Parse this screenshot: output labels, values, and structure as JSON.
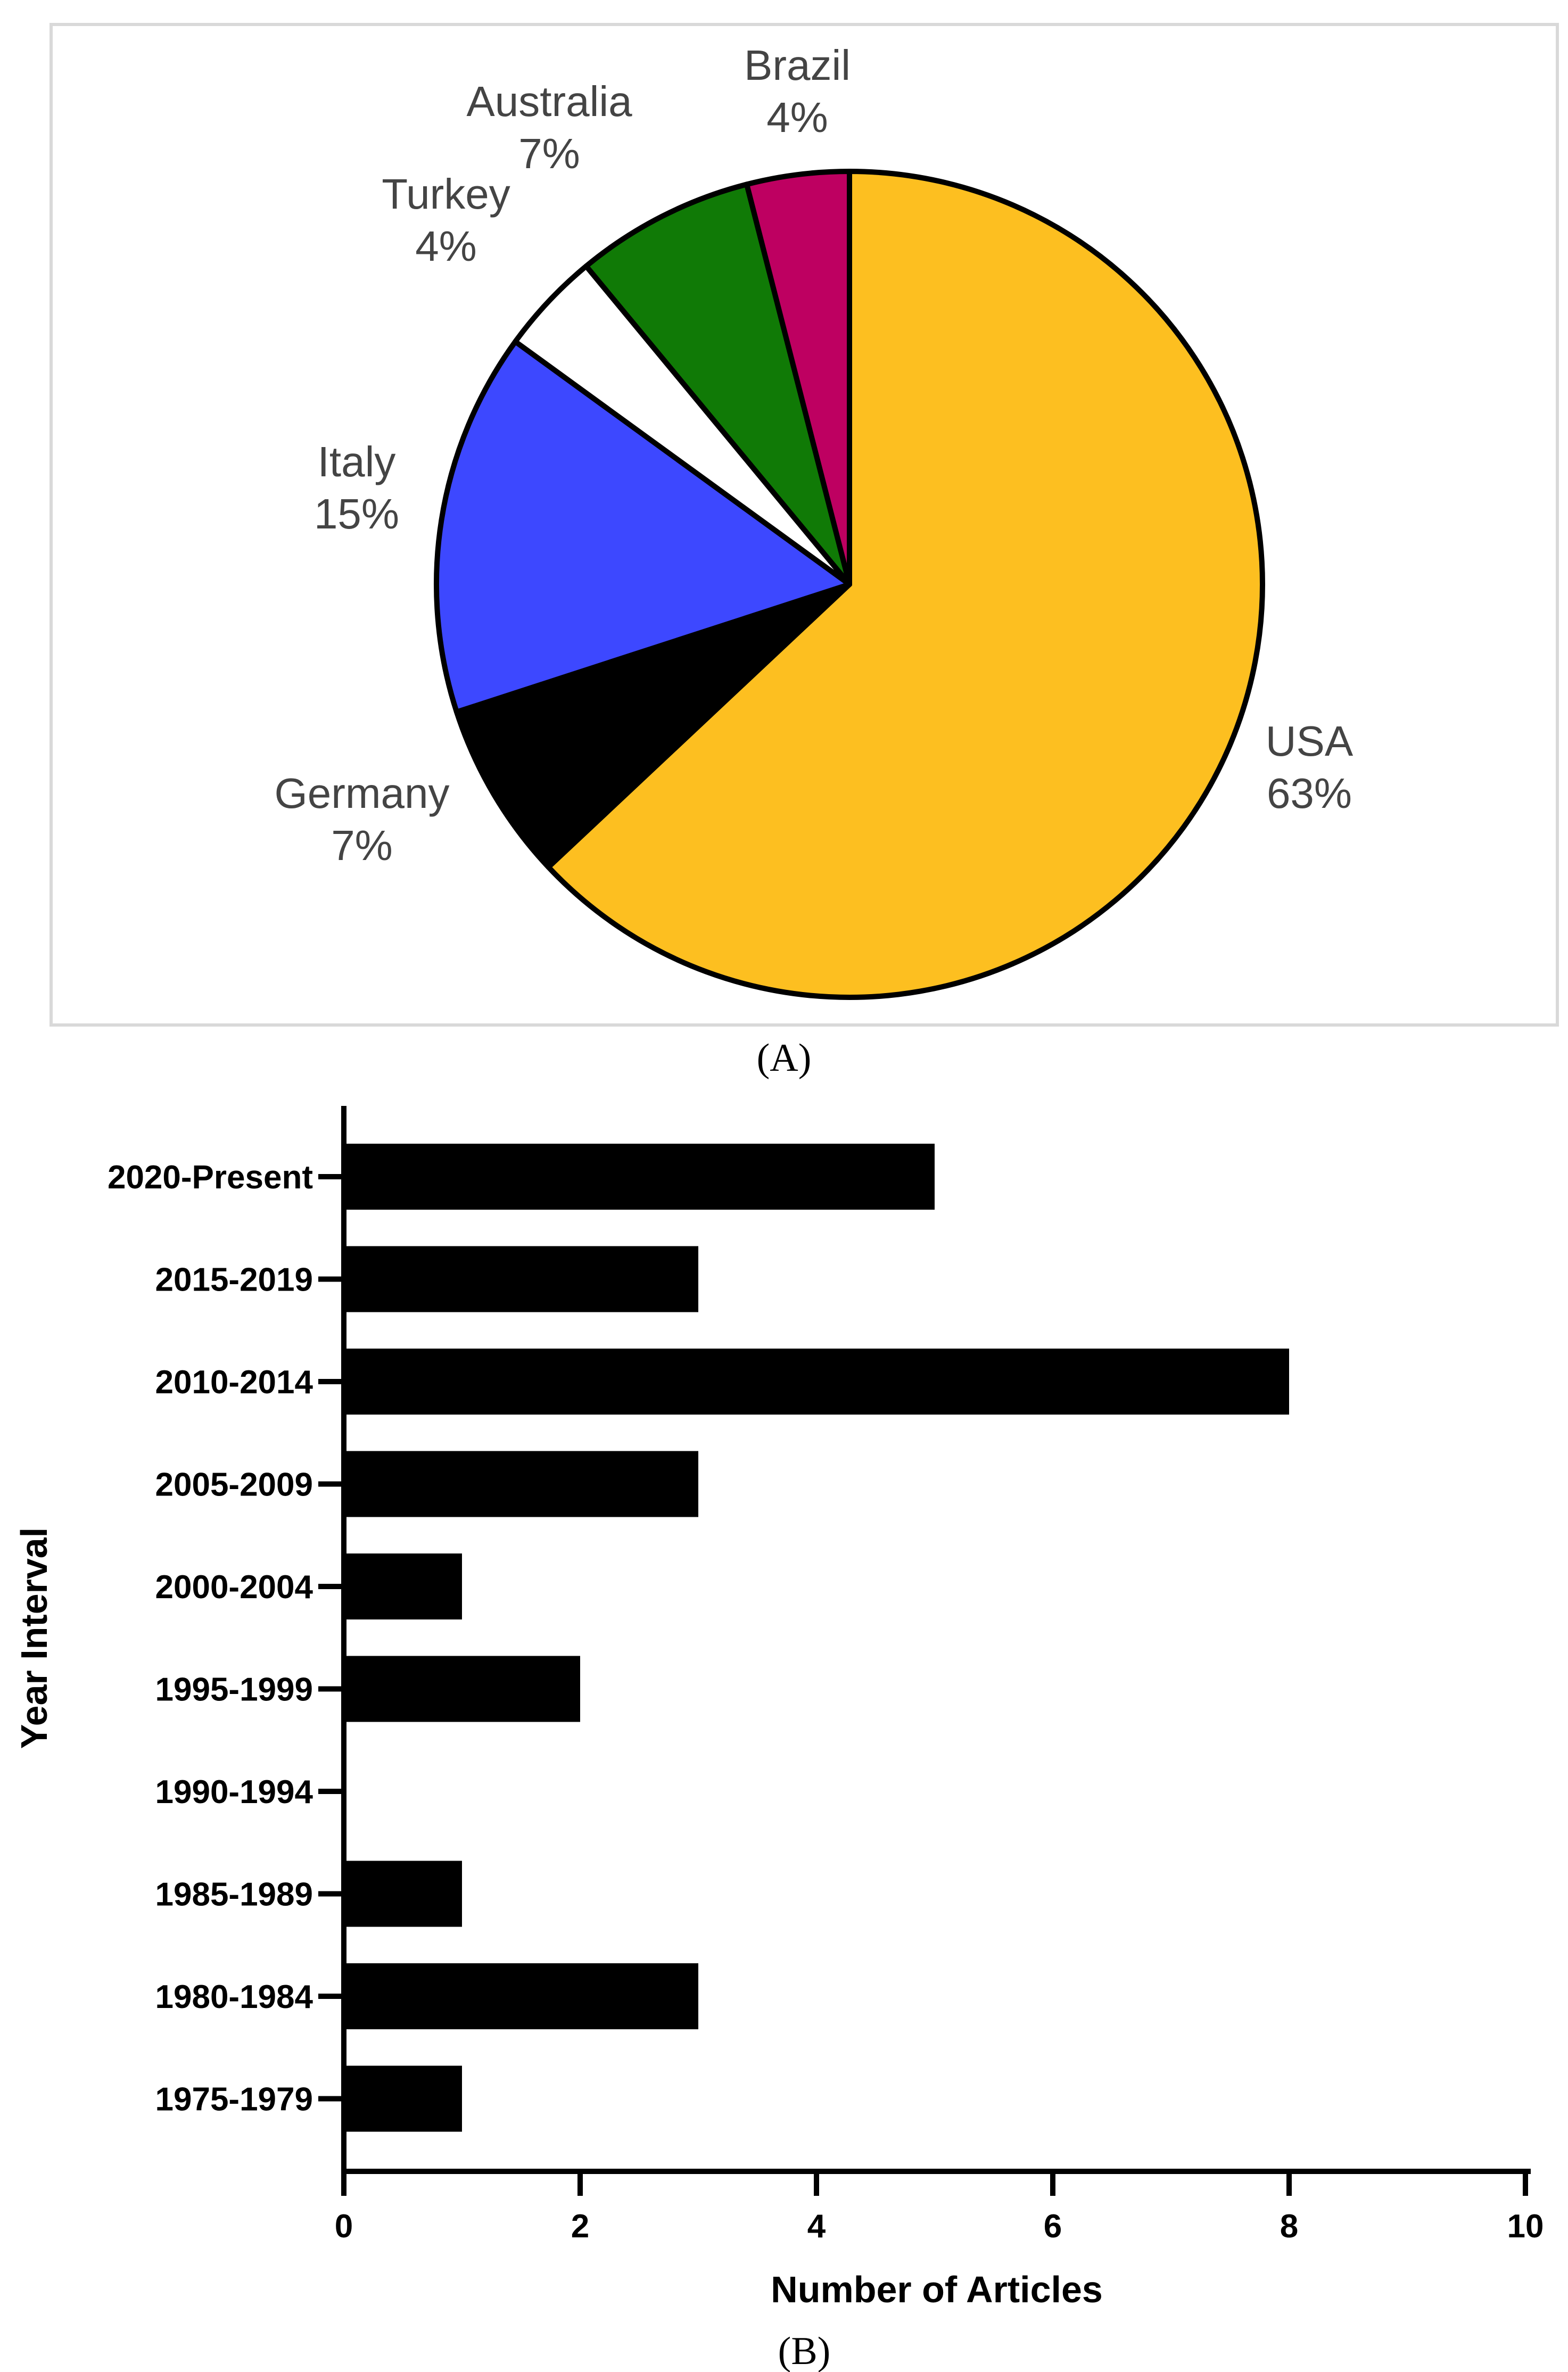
{
  "chart_data": [
    {
      "type": "pie",
      "panel_label": "(A)",
      "slices": [
        {
          "label": "USA",
          "value": 63,
          "value_label": "63%",
          "color": "#FDBF20"
        },
        {
          "label": "Germany",
          "value": 7,
          "value_label": "7%",
          "color": "#000000"
        },
        {
          "label": "Italy",
          "value": 15,
          "value_label": "15%",
          "color": "#3D48FF"
        },
        {
          "label": "Turkey",
          "value": 4,
          "value_label": "4%",
          "color": "#FFFFFF"
        },
        {
          "label": "Australia",
          "value": 7,
          "value_label": "7%",
          "color": "#107A06"
        },
        {
          "label": "Brazil",
          "value": 4,
          "value_label": "4%",
          "color": "#BE0061"
        }
      ],
      "start_angle": "12 o'clock",
      "direction": "clockwise"
    },
    {
      "type": "bar",
      "orientation": "horizontal",
      "panel_label": "(B)",
      "categories": [
        "2020-Present",
        "2015-2019",
        "2010-2014",
        "2005-2009",
        "2000-2004",
        "1995-1999",
        "1990-1994",
        "1985-1989",
        "1980-1984",
        "1975-1979"
      ],
      "values": [
        5,
        3,
        8,
        3,
        1,
        2,
        0,
        1,
        3,
        1
      ],
      "xlabel": "Number of Articles",
      "ylabel": "Year Interval",
      "xlim": [
        0,
        10
      ],
      "xticks": [
        0,
        2,
        4,
        6,
        8,
        10
      ],
      "bar_color": "#000000",
      "grid": false
    }
  ]
}
